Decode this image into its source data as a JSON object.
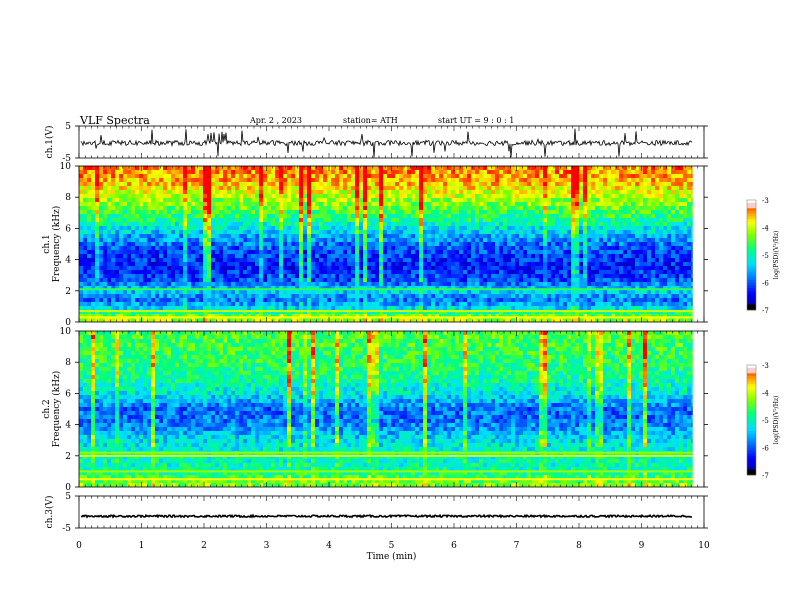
{
  "header": {
    "title": "VLF  Spectra",
    "date": "Apr. 2  , 2023",
    "station": "station= ATH",
    "start": "start  UT  =    9  : 0   : 1"
  },
  "colorbar": {
    "label": "log(PSD)(V²/Hz)",
    "ticks": [
      "-3",
      "-4",
      "-5",
      "-6",
      "-7"
    ],
    "scale": [
      "#000000",
      "#00008b",
      "#0000ff",
      "#0080ff",
      "#00e0ff",
      "#00ff80",
      "#7fff00",
      "#ffff00",
      "#ff8000",
      "#ff0000",
      "#ffffff"
    ]
  },
  "chart_data": [
    {
      "type": "line",
      "panel": "ch1-waveform",
      "ylabel": "ch.1(V)",
      "ylim": [
        -5,
        5
      ],
      "yticks": [
        "5",
        "-5"
      ],
      "xlim": [
        0,
        10
      ],
      "baseline": -0.3
    },
    {
      "type": "heatmap",
      "panel": "ch1-spectrogram",
      "ylabel": "ch.1\nFrequency  (kHz)",
      "ylim": [
        0,
        10
      ],
      "yticks": [
        "0",
        "2",
        "4",
        "6",
        "8",
        "10"
      ],
      "xlim": [
        0,
        10
      ],
      "zrange": [
        -7,
        -3
      ],
      "profile": [
        {
          "f": 0,
          "z": -4.0
        },
        {
          "f": 0.5,
          "z": -4.6
        },
        {
          "f": 1.0,
          "z": -5.5
        },
        {
          "f": 1.5,
          "z": -5.9
        },
        {
          "f": 2.0,
          "z": -5.3
        },
        {
          "f": 2.6,
          "z": -6.0
        },
        {
          "f": 3.5,
          "z": -6.3
        },
        {
          "f": 4.5,
          "z": -6.1
        },
        {
          "f": 5.5,
          "z": -5.6
        },
        {
          "f": 6.3,
          "z": -5.0
        },
        {
          "f": 7.0,
          "z": -4.6
        },
        {
          "f": 8.0,
          "z": -4.1
        },
        {
          "f": 9.0,
          "z": -3.6
        },
        {
          "f": 10.0,
          "z": -3.4
        }
      ],
      "lines": [
        {
          "f": 0.3,
          "z": -3.8
        },
        {
          "f": 0.7,
          "z": -4.0
        },
        {
          "f": 2.1,
          "z": -4.6
        }
      ]
    },
    {
      "type": "heatmap",
      "panel": "ch2-spectrogram",
      "ylabel": "ch.2\nFrequency  (kHz)",
      "ylim": [
        0,
        10
      ],
      "yticks": [
        "0",
        "2",
        "4",
        "6",
        "8",
        "10"
      ],
      "xlim": [
        0,
        10
      ],
      "zrange": [
        -7,
        -3
      ],
      "profile": [
        {
          "f": 0,
          "z": -4.2
        },
        {
          "f": 0.6,
          "z": -4.6
        },
        {
          "f": 1.2,
          "z": -5.0
        },
        {
          "f": 2.0,
          "z": -5.0
        },
        {
          "f": 3.0,
          "z": -5.3
        },
        {
          "f": 4.0,
          "z": -5.8
        },
        {
          "f": 5.0,
          "z": -5.9
        },
        {
          "f": 6.0,
          "z": -5.2
        },
        {
          "f": 7.0,
          "z": -4.9
        },
        {
          "f": 8.0,
          "z": -4.7
        },
        {
          "f": 9.0,
          "z": -4.6
        },
        {
          "f": 10.0,
          "z": -4.5
        }
      ],
      "lines": [
        {
          "f": 0.5,
          "z": -3.8
        },
        {
          "f": 1.0,
          "z": -4.2
        },
        {
          "f": 2.0,
          "z": -3.9
        },
        {
          "f": 2.2,
          "z": -4.2
        }
      ]
    },
    {
      "type": "line",
      "panel": "ch3-waveform",
      "ylabel": "ch.3(V)",
      "ylim": [
        -5,
        5
      ],
      "yticks": [
        "5",
        "-5"
      ],
      "xlim": [
        0,
        10
      ],
      "baseline": -1.3
    }
  ],
  "xaxis": {
    "label": "Time  (min)",
    "ticks": [
      "0",
      "1",
      "2",
      "3",
      "4",
      "5",
      "6",
      "7",
      "8",
      "9",
      "10"
    ],
    "data_end": 9.82
  }
}
